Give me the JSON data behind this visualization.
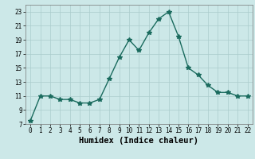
{
  "x": [
    0,
    1,
    2,
    3,
    4,
    5,
    6,
    7,
    8,
    9,
    10,
    11,
    12,
    13,
    14,
    15,
    16,
    17,
    18,
    19,
    20,
    21,
    22
  ],
  "y": [
    7.5,
    11.0,
    11.0,
    10.5,
    10.5,
    10.0,
    10.0,
    10.5,
    13.5,
    16.5,
    19.0,
    17.5,
    20.0,
    22.0,
    23.0,
    19.5,
    15.0,
    14.0,
    12.5,
    11.5,
    11.5,
    11.0,
    11.0
  ],
  "line_color": "#1a6b5e",
  "marker": "*",
  "marker_size": 4,
  "background_color": "#cce8e8",
  "grid_color": "#aacccc",
  "xlabel": "Humidex (Indice chaleur)",
  "xlim": [
    -0.5,
    22.5
  ],
  "ylim": [
    7,
    24
  ],
  "xticks": [
    0,
    1,
    2,
    3,
    4,
    5,
    6,
    7,
    8,
    9,
    10,
    11,
    12,
    13,
    14,
    15,
    16,
    17,
    18,
    19,
    20,
    21,
    22
  ],
  "yticks": [
    7,
    9,
    11,
    13,
    15,
    17,
    19,
    21,
    23
  ],
  "tick_fontsize": 5.5,
  "label_fontsize": 7.5,
  "line_width": 1.0
}
